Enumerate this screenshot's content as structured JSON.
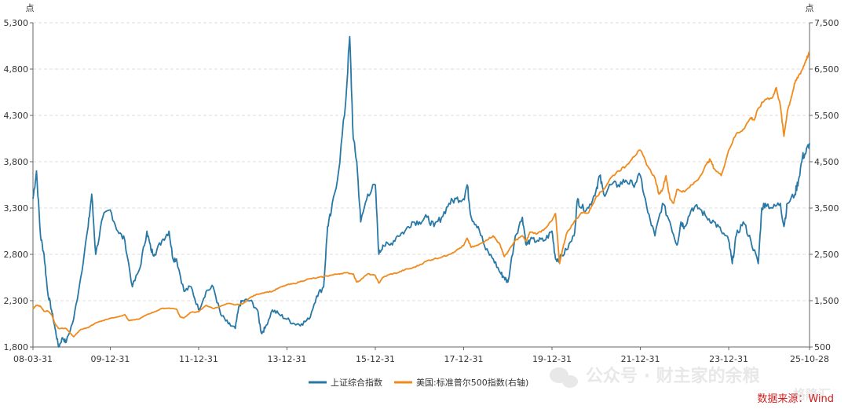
{
  "chart_data": {
    "type": "line",
    "left_axis": {
      "unit": "点",
      "ticks": [
        "1,800",
        "2,300",
        "2,800",
        "3,300",
        "3,800",
        "4,300",
        "4,800",
        "5,300"
      ],
      "tick_values": [
        1800,
        2300,
        2800,
        3300,
        3800,
        4300,
        4800,
        5300
      ],
      "ylim": [
        1800,
        5300
      ]
    },
    "right_axis": {
      "unit": "点",
      "ticks": [
        "500",
        "1,500",
        "2,500",
        "3,500",
        "4,500",
        "5,500",
        "6,500",
        "7,500"
      ],
      "tick_values": [
        500,
        1500,
        2500,
        3500,
        4500,
        5500,
        6500,
        7500
      ],
      "ylim": [
        500,
        7500
      ]
    },
    "x_axis": {
      "ticks": [
        "08-03-31",
        "09-12-31",
        "11-12-31",
        "13-12-31",
        "15-12-31",
        "17-12-31",
        "19-12-31",
        "21-12-31",
        "23-12-31",
        "25-10-28"
      ],
      "tick_dates": [
        2008.25,
        2010.0,
        2012.0,
        2014.0,
        2016.0,
        2018.0,
        2020.0,
        2022.0,
        2024.0,
        2025.83
      ],
      "xlim": [
        2008.25,
        2025.83
      ]
    },
    "grid": true,
    "legend_position": "bottom",
    "series": [
      {
        "name": "上证综合指数",
        "axis": "left",
        "color": "#2878a6",
        "points": [
          [
            2008.25,
            3400
          ],
          [
            2008.33,
            3700
          ],
          [
            2008.42,
            3000
          ],
          [
            2008.5,
            2800
          ],
          [
            2008.58,
            2400
          ],
          [
            2008.67,
            2200
          ],
          [
            2008.75,
            2000
          ],
          [
            2008.83,
            1800
          ],
          [
            2008.92,
            1900
          ],
          [
            2009.0,
            1850
          ],
          [
            2009.17,
            2100
          ],
          [
            2009.33,
            2550
          ],
          [
            2009.5,
            3100
          ],
          [
            2009.58,
            3450
          ],
          [
            2009.67,
            2800
          ],
          [
            2009.83,
            3200
          ],
          [
            2010.0,
            3280
          ],
          [
            2010.17,
            3050
          ],
          [
            2010.33,
            2950
          ],
          [
            2010.5,
            2450
          ],
          [
            2010.67,
            2650
          ],
          [
            2010.83,
            3050
          ],
          [
            2010.92,
            2850
          ],
          [
            2011.0,
            2800
          ],
          [
            2011.17,
            2950
          ],
          [
            2011.33,
            3050
          ],
          [
            2011.42,
            2750
          ],
          [
            2011.5,
            2750
          ],
          [
            2011.67,
            2400
          ],
          [
            2011.83,
            2450
          ],
          [
            2012.0,
            2200
          ],
          [
            2012.17,
            2400
          ],
          [
            2012.33,
            2450
          ],
          [
            2012.5,
            2150
          ],
          [
            2012.67,
            2050
          ],
          [
            2012.83,
            2000
          ],
          [
            2012.92,
            2250
          ],
          [
            2013.0,
            2300
          ],
          [
            2013.17,
            2300
          ],
          [
            2013.33,
            2200
          ],
          [
            2013.42,
            1950
          ],
          [
            2013.5,
            2000
          ],
          [
            2013.67,
            2200
          ],
          [
            2013.83,
            2150
          ],
          [
            2014.0,
            2100
          ],
          [
            2014.17,
            2050
          ],
          [
            2014.33,
            2050
          ],
          [
            2014.5,
            2100
          ],
          [
            2014.67,
            2350
          ],
          [
            2014.83,
            2450
          ],
          [
            2014.92,
            3100
          ],
          [
            2015.0,
            3250
          ],
          [
            2015.17,
            3700
          ],
          [
            2015.33,
            4450
          ],
          [
            2015.42,
            5150
          ],
          [
            2015.5,
            4050
          ],
          [
            2015.58,
            3800
          ],
          [
            2015.67,
            3150
          ],
          [
            2015.83,
            3450
          ],
          [
            2016.0,
            3550
          ],
          [
            2016.08,
            2800
          ],
          [
            2016.17,
            2900
          ],
          [
            2016.33,
            2900
          ],
          [
            2016.5,
            3000
          ],
          [
            2016.67,
            3050
          ],
          [
            2016.83,
            3150
          ],
          [
            2017.0,
            3150
          ],
          [
            2017.17,
            3200
          ],
          [
            2017.33,
            3100
          ],
          [
            2017.5,
            3200
          ],
          [
            2017.67,
            3350
          ],
          [
            2017.83,
            3400
          ],
          [
            2018.0,
            3400
          ],
          [
            2018.08,
            3550
          ],
          [
            2018.17,
            3200
          ],
          [
            2018.33,
            3100
          ],
          [
            2018.5,
            2850
          ],
          [
            2018.67,
            2750
          ],
          [
            2018.83,
            2600
          ],
          [
            2018.92,
            2550
          ],
          [
            2019.0,
            2500
          ],
          [
            2019.17,
            3000
          ],
          [
            2019.33,
            3200
          ],
          [
            2019.42,
            2900
          ],
          [
            2019.5,
            2950
          ],
          [
            2019.67,
            2950
          ],
          [
            2019.83,
            2950
          ],
          [
            2020.0,
            3050
          ],
          [
            2020.08,
            2750
          ],
          [
            2020.17,
            2750
          ],
          [
            2020.33,
            2850
          ],
          [
            2020.5,
            3000
          ],
          [
            2020.58,
            3400
          ],
          [
            2020.67,
            3300
          ],
          [
            2020.83,
            3300
          ],
          [
            2021.0,
            3500
          ],
          [
            2021.08,
            3650
          ],
          [
            2021.17,
            3450
          ],
          [
            2021.33,
            3550
          ],
          [
            2021.5,
            3550
          ],
          [
            2021.67,
            3600
          ],
          [
            2021.83,
            3550
          ],
          [
            2022.0,
            3650
          ],
          [
            2022.17,
            3250
          ],
          [
            2022.33,
            3000
          ],
          [
            2022.5,
            3350
          ],
          [
            2022.67,
            3150
          ],
          [
            2022.83,
            2900
          ],
          [
            2022.92,
            3150
          ],
          [
            2023.0,
            3100
          ],
          [
            2023.17,
            3300
          ],
          [
            2023.33,
            3300
          ],
          [
            2023.5,
            3200
          ],
          [
            2023.67,
            3150
          ],
          [
            2023.83,
            3050
          ],
          [
            2024.0,
            2950
          ],
          [
            2024.08,
            2700
          ],
          [
            2024.17,
            3000
          ],
          [
            2024.33,
            3150
          ],
          [
            2024.5,
            2950
          ],
          [
            2024.67,
            2700
          ],
          [
            2024.75,
            3300
          ],
          [
            2024.83,
            3350
          ],
          [
            2025.0,
            3300
          ],
          [
            2025.17,
            3350
          ],
          [
            2025.25,
            3100
          ],
          [
            2025.33,
            3350
          ],
          [
            2025.5,
            3450
          ],
          [
            2025.58,
            3600
          ],
          [
            2025.67,
            3850
          ],
          [
            2025.75,
            3900
          ],
          [
            2025.83,
            4000
          ]
        ]
      },
      {
        "name": "美国:标准普尔500指数(右轴)",
        "axis": "right",
        "color": "#f08a1c",
        "points": [
          [
            2008.25,
            1320
          ],
          [
            2008.33,
            1400
          ],
          [
            2008.42,
            1380
          ],
          [
            2008.5,
            1270
          ],
          [
            2008.58,
            1280
          ],
          [
            2008.67,
            1200
          ],
          [
            2008.75,
            1000
          ],
          [
            2008.83,
            900
          ],
          [
            2009.0,
            900
          ],
          [
            2009.17,
            720
          ],
          [
            2009.25,
            800
          ],
          [
            2009.33,
            880
          ],
          [
            2009.5,
            920
          ],
          [
            2009.67,
            1020
          ],
          [
            2009.83,
            1070
          ],
          [
            2010.0,
            1120
          ],
          [
            2010.17,
            1150
          ],
          [
            2010.33,
            1200
          ],
          [
            2010.42,
            1070
          ],
          [
            2010.5,
            1080
          ],
          [
            2010.67,
            1110
          ],
          [
            2010.83,
            1200
          ],
          [
            2011.0,
            1260
          ],
          [
            2011.17,
            1330
          ],
          [
            2011.33,
            1340
          ],
          [
            2011.5,
            1320
          ],
          [
            2011.58,
            1150
          ],
          [
            2011.67,
            1130
          ],
          [
            2011.83,
            1250
          ],
          [
            2012.0,
            1260
          ],
          [
            2012.17,
            1400
          ],
          [
            2012.33,
            1330
          ],
          [
            2012.5,
            1380
          ],
          [
            2012.67,
            1440
          ],
          [
            2012.83,
            1410
          ],
          [
            2013.0,
            1430
          ],
          [
            2013.17,
            1570
          ],
          [
            2013.33,
            1640
          ],
          [
            2013.5,
            1680
          ],
          [
            2013.67,
            1700
          ],
          [
            2013.83,
            1780
          ],
          [
            2014.0,
            1840
          ],
          [
            2014.17,
            1870
          ],
          [
            2014.33,
            1920
          ],
          [
            2014.5,
            1970
          ],
          [
            2014.67,
            1990
          ],
          [
            2014.83,
            2020
          ],
          [
            2015.0,
            2050
          ],
          [
            2015.17,
            2080
          ],
          [
            2015.33,
            2100
          ],
          [
            2015.5,
            2080
          ],
          [
            2015.58,
            1900
          ],
          [
            2015.67,
            1950
          ],
          [
            2015.83,
            2080
          ],
          [
            2016.0,
            2040
          ],
          [
            2016.08,
            1880
          ],
          [
            2016.17,
            2000
          ],
          [
            2016.33,
            2070
          ],
          [
            2016.5,
            2100
          ],
          [
            2016.67,
            2170
          ],
          [
            2016.83,
            2200
          ],
          [
            2017.0,
            2270
          ],
          [
            2017.17,
            2360
          ],
          [
            2017.33,
            2400
          ],
          [
            2017.5,
            2440
          ],
          [
            2017.67,
            2500
          ],
          [
            2017.83,
            2580
          ],
          [
            2018.0,
            2690
          ],
          [
            2018.08,
            2850
          ],
          [
            2018.17,
            2650
          ],
          [
            2018.33,
            2700
          ],
          [
            2018.5,
            2800
          ],
          [
            2018.67,
            2900
          ],
          [
            2018.75,
            2800
          ],
          [
            2018.83,
            2700
          ],
          [
            2018.92,
            2450
          ],
          [
            2019.0,
            2550
          ],
          [
            2019.17,
            2800
          ],
          [
            2019.33,
            2900
          ],
          [
            2019.42,
            2780
          ],
          [
            2019.5,
            2980
          ],
          [
            2019.67,
            2950
          ],
          [
            2019.83,
            3050
          ],
          [
            2020.0,
            3230
          ],
          [
            2020.08,
            3380
          ],
          [
            2020.17,
            2300
          ],
          [
            2020.25,
            2650
          ],
          [
            2020.33,
            2950
          ],
          [
            2020.5,
            3200
          ],
          [
            2020.67,
            3400
          ],
          [
            2020.83,
            3400
          ],
          [
            2021.0,
            3750
          ],
          [
            2021.17,
            3900
          ],
          [
            2021.33,
            4150
          ],
          [
            2021.5,
            4300
          ],
          [
            2021.67,
            4400
          ],
          [
            2021.83,
            4600
          ],
          [
            2022.0,
            4750
          ],
          [
            2022.17,
            4400
          ],
          [
            2022.33,
            4150
          ],
          [
            2022.42,
            3800
          ],
          [
            2022.5,
            3900
          ],
          [
            2022.58,
            4200
          ],
          [
            2022.67,
            3700
          ],
          [
            2022.75,
            3600
          ],
          [
            2022.83,
            3900
          ],
          [
            2023.0,
            3850
          ],
          [
            2023.17,
            4000
          ],
          [
            2023.33,
            4150
          ],
          [
            2023.5,
            4450
          ],
          [
            2023.58,
            4550
          ],
          [
            2023.67,
            4350
          ],
          [
            2023.83,
            4200
          ],
          [
            2024.0,
            4750
          ],
          [
            2024.17,
            5100
          ],
          [
            2024.33,
            5200
          ],
          [
            2024.5,
            5450
          ],
          [
            2024.58,
            5400
          ],
          [
            2024.67,
            5650
          ],
          [
            2024.83,
            5850
          ],
          [
            2025.0,
            5900
          ],
          [
            2025.08,
            6100
          ],
          [
            2025.17,
            5700
          ],
          [
            2025.25,
            5050
          ],
          [
            2025.33,
            5600
          ],
          [
            2025.42,
            5900
          ],
          [
            2025.5,
            6200
          ],
          [
            2025.58,
            6350
          ],
          [
            2025.67,
            6500
          ],
          [
            2025.75,
            6700
          ],
          [
            2025.83,
            6850
          ]
        ]
      }
    ]
  },
  "legend": [
    {
      "label": "上证综合指数",
      "color": "#2878a6"
    },
    {
      "label": "美国:标准普尔500指数(右轴)",
      "color": "#f08a1c"
    }
  ],
  "source": "数据来源：Wind",
  "watermark": "公众号 · 财主家的余粮",
  "watermark2": "格隆汇"
}
